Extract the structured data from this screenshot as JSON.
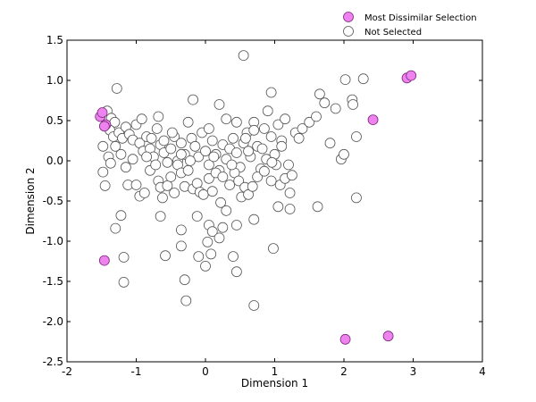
{
  "chart_data": {
    "type": "scatter",
    "title": "",
    "xlabel": "Dimension 1",
    "ylabel": "Dimension 2",
    "xlim": [
      -2,
      4
    ],
    "ylim": [
      -2.5,
      1.5
    ],
    "x_ticks": [
      "-2",
      "-1",
      "0",
      "1",
      "2",
      "3",
      "4"
    ],
    "y_ticks": [
      "-2.5",
      "-2.0",
      "-1.5",
      "-1.0",
      "-0.5",
      "0.0",
      "0.5",
      "1.0",
      "1.5"
    ],
    "grid": false,
    "legend_position": "top-right, outside plot",
    "series": [
      {
        "name": "Most Dissimilar Selection",
        "color": "#ee82ee",
        "edge_color": "#7a2a7a",
        "marker": "circle",
        "points": [
          [
            -1.52,
            0.55
          ],
          [
            -1.49,
            0.6
          ],
          [
            -1.44,
            0.45
          ],
          [
            -1.46,
            0.43
          ],
          [
            -1.46,
            -1.24
          ],
          [
            2.02,
            -2.22
          ],
          [
            2.64,
            -2.18
          ],
          [
            2.42,
            0.51
          ],
          [
            2.91,
            1.03
          ],
          [
            2.97,
            1.06
          ]
        ]
      },
      {
        "name": "Not Selected",
        "color": "#ffffff",
        "edge_color": "#555555",
        "marker": "circle",
        "points": [
          [
            -1.42,
            0.62
          ],
          [
            -1.36,
            0.53
          ],
          [
            -1.31,
            0.48
          ],
          [
            -1.38,
            0.38
          ],
          [
            -1.33,
            0.3
          ],
          [
            -1.25,
            0.35
          ],
          [
            -1.2,
            0.28
          ],
          [
            -1.15,
            0.42
          ],
          [
            -1.1,
            0.33
          ],
          [
            -1.05,
            0.26
          ],
          [
            -1.0,
            0.45
          ],
          [
            -0.95,
            0.22
          ],
          [
            -0.9,
            0.12
          ],
          [
            -0.85,
            0.3
          ],
          [
            -0.8,
            0.15
          ],
          [
            -0.75,
            0.05
          ],
          [
            -0.7,
            0.4
          ],
          [
            -0.65,
            0.2
          ],
          [
            -0.6,
            0.1
          ],
          [
            -0.55,
            -0.02
          ],
          [
            -0.5,
            0.15
          ],
          [
            -0.45,
            0.3
          ],
          [
            -0.4,
            0.0
          ],
          [
            -0.35,
            0.22
          ],
          [
            -0.3,
            0.08
          ],
          [
            -0.25,
            0.48
          ],
          [
            -0.2,
            0.28
          ],
          [
            -0.15,
            0.18
          ],
          [
            -0.1,
            0.05
          ],
          [
            -0.05,
            0.35
          ],
          [
            0.0,
            0.12
          ],
          [
            0.05,
            -0.05
          ],
          [
            0.1,
            0.25
          ],
          [
            0.15,
            0.08
          ],
          [
            0.2,
            -0.12
          ],
          [
            0.25,
            0.2
          ],
          [
            0.3,
            0.02
          ],
          [
            0.35,
            0.15
          ],
          [
            0.4,
            0.28
          ],
          [
            0.45,
            0.1
          ],
          [
            0.5,
            -0.08
          ],
          [
            0.55,
            0.22
          ],
          [
            0.6,
            0.35
          ],
          [
            0.65,
            0.05
          ],
          [
            0.7,
            0.48
          ],
          [
            0.75,
            0.18
          ],
          [
            0.8,
            -0.1
          ],
          [
            0.85,
            0.4
          ],
          [
            0.9,
            0.62
          ],
          [
            0.95,
            0.3
          ],
          [
            1.0,
            0.08
          ],
          [
            1.05,
            0.45
          ],
          [
            1.1,
            0.25
          ],
          [
            1.15,
            0.52
          ],
          [
            1.2,
            -0.05
          ],
          [
            1.3,
            0.35
          ],
          [
            1.4,
            0.4
          ],
          [
            1.5,
            0.48
          ],
          [
            1.6,
            0.55
          ],
          [
            1.65,
            0.83
          ],
          [
            1.72,
            0.72
          ],
          [
            1.8,
            0.22
          ],
          [
            1.88,
            0.65
          ],
          [
            1.96,
            0.02
          ],
          [
            2.0,
            0.08
          ],
          [
            2.02,
            1.01
          ],
          [
            2.12,
            0.76
          ],
          [
            2.13,
            0.7
          ],
          [
            2.18,
            0.3
          ],
          [
            2.18,
            -0.46
          ],
          [
            2.28,
            1.02
          ],
          [
            -1.48,
            0.18
          ],
          [
            -1.4,
            0.05
          ],
          [
            -1.48,
            -0.14
          ],
          [
            -1.37,
            -0.03
          ],
          [
            -1.45,
            -0.31
          ],
          [
            -1.3,
            0.18
          ],
          [
            -1.22,
            0.08
          ],
          [
            -1.15,
            -0.08
          ],
          [
            -1.12,
            -0.3
          ],
          [
            -1.05,
            0.02
          ],
          [
            -1.0,
            -0.3
          ],
          [
            -0.95,
            -0.44
          ],
          [
            -0.88,
            -0.4
          ],
          [
            -0.8,
            -0.12
          ],
          [
            -0.72,
            -0.05
          ],
          [
            -0.68,
            -0.25
          ],
          [
            -0.65,
            -0.33
          ],
          [
            -0.62,
            -0.46
          ],
          [
            -0.55,
            -0.31
          ],
          [
            -0.5,
            -0.2
          ],
          [
            -0.45,
            -0.4
          ],
          [
            -0.4,
            -0.05
          ],
          [
            -0.35,
            -0.15
          ],
          [
            -0.3,
            -0.32
          ],
          [
            -0.25,
            -0.12
          ],
          [
            -0.18,
            -0.35
          ],
          [
            -0.12,
            -0.28
          ],
          [
            -0.08,
            -0.39
          ],
          [
            -0.03,
            -0.42
          ],
          [
            0.05,
            -0.22
          ],
          [
            0.1,
            -0.38
          ],
          [
            0.15,
            -0.15
          ],
          [
            0.22,
            -0.52
          ],
          [
            0.25,
            -0.2
          ],
          [
            0.3,
            -0.62
          ],
          [
            0.35,
            -0.3
          ],
          [
            0.42,
            -0.15
          ],
          [
            0.48,
            -0.25
          ],
          [
            0.52,
            -0.45
          ],
          [
            0.57,
            -0.33
          ],
          [
            0.62,
            -0.42
          ],
          [
            0.68,
            -0.32
          ],
          [
            0.75,
            -0.2
          ],
          [
            0.85,
            -0.13
          ],
          [
            0.95,
            -0.25
          ],
          [
            1.02,
            -0.05
          ],
          [
            1.08,
            -0.3
          ],
          [
            1.15,
            -0.22
          ],
          [
            1.22,
            -0.4
          ],
          [
            1.25,
            -0.18
          ],
          [
            1.05,
            -0.57
          ],
          [
            1.22,
            -0.6
          ],
          [
            1.62,
            -0.57
          ],
          [
            0.7,
            -0.73
          ],
          [
            0.98,
            -1.09
          ],
          [
            -1.3,
            -0.84
          ],
          [
            -1.22,
            -0.68
          ],
          [
            -1.18,
            -1.2
          ],
          [
            -1.18,
            -1.51
          ],
          [
            -0.65,
            -0.69
          ],
          [
            -0.58,
            -1.18
          ],
          [
            -0.35,
            -0.86
          ],
          [
            -0.35,
            -1.06
          ],
          [
            -0.3,
            -1.48
          ],
          [
            -0.28,
            -1.74
          ],
          [
            -0.12,
            -0.69
          ],
          [
            -0.1,
            -1.19
          ],
          [
            0.0,
            -1.31
          ],
          [
            0.03,
            -1.01
          ],
          [
            0.05,
            -0.8
          ],
          [
            0.1,
            -0.88
          ],
          [
            0.08,
            -1.16
          ],
          [
            0.2,
            -0.96
          ],
          [
            0.25,
            -0.83
          ],
          [
            0.4,
            -1.19
          ],
          [
            0.45,
            -0.8
          ],
          [
            0.45,
            -1.38
          ],
          [
            0.7,
            -1.8
          ],
          [
            -1.28,
            0.9
          ],
          [
            -0.18,
            0.76
          ],
          [
            0.2,
            0.7
          ],
          [
            0.55,
            1.31
          ],
          [
            0.95,
            0.85
          ],
          [
            -0.68,
            0.55
          ],
          [
            -0.92,
            0.52
          ],
          [
            0.05,
            0.4
          ],
          [
            0.3,
            0.52
          ],
          [
            0.45,
            0.48
          ],
          [
            0.58,
            0.28
          ],
          [
            0.7,
            0.38
          ],
          [
            -0.35,
            0.08
          ],
          [
            -0.48,
            0.35
          ],
          [
            -0.6,
            0.25
          ],
          [
            -0.78,
            0.28
          ],
          [
            -0.85,
            0.05
          ],
          [
            -0.22,
            0.0
          ],
          [
            0.12,
            0.05
          ],
          [
            0.38,
            -0.05
          ],
          [
            0.62,
            0.12
          ],
          [
            0.88,
            0.02
          ],
          [
            1.1,
            0.18
          ],
          [
            1.35,
            0.28
          ],
          [
            0.82,
            0.15
          ],
          [
            0.96,
            -0.02
          ]
        ]
      }
    ]
  }
}
